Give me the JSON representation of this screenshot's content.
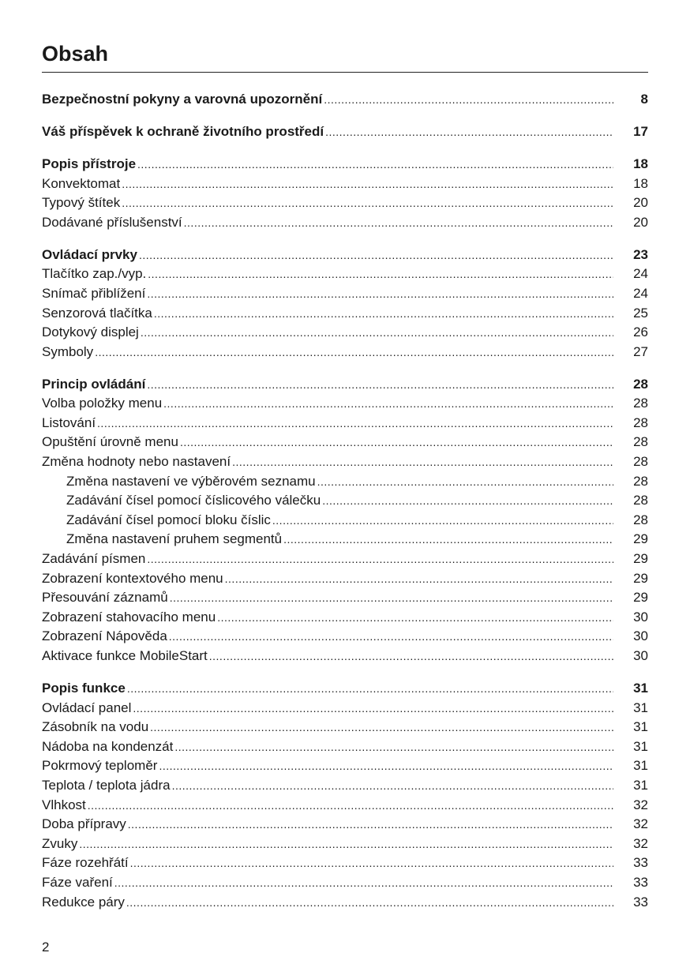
{
  "title": "Obsah",
  "page_number": "2",
  "groups": [
    {
      "entries": [
        {
          "title": "Bezpečnostní pokyny a varovná upozornění",
          "page": "8",
          "bold": true
        }
      ]
    },
    {
      "entries": [
        {
          "title": "Váš příspěvek k ochraně životního prostředí",
          "page": "17",
          "bold": true
        }
      ]
    },
    {
      "entries": [
        {
          "title": "Popis přístroje",
          "page": "18",
          "bold": true
        },
        {
          "title": "Konvektomat",
          "page": "18"
        },
        {
          "title": "Typový štítek",
          "page": "20"
        },
        {
          "title": "Dodávané příslušenství",
          "page": "20"
        }
      ]
    },
    {
      "entries": [
        {
          "title": "Ovládací prvky",
          "page": "23",
          "bold": true
        },
        {
          "title": "Tlačítko zap./vyp.",
          "page": "24"
        },
        {
          "title": "Snímač přiblížení",
          "page": "24"
        },
        {
          "title": "Senzorová tlačítka",
          "page": "25"
        },
        {
          "title": "Dotykový displej",
          "page": "26"
        },
        {
          "title": "Symboly",
          "page": "27"
        }
      ]
    },
    {
      "entries": [
        {
          "title": "Princip ovládání",
          "page": "28",
          "bold": true
        },
        {
          "title": "Volba položky menu",
          "page": "28"
        },
        {
          "title": "Listování",
          "page": "28"
        },
        {
          "title": "Opuštění úrovně menu",
          "page": "28"
        },
        {
          "title": "Změna hodnoty nebo nastavení",
          "page": "28"
        },
        {
          "title": "Změna nastavení ve výběrovém seznamu",
          "page": "28",
          "indent": true
        },
        {
          "title": "Zadávání čísel pomocí číslicového válečku",
          "page": "28",
          "indent": true
        },
        {
          "title": "Zadávání čísel pomocí bloku číslic",
          "page": "28",
          "indent": true
        },
        {
          "title": "Změna nastavení pruhem segmentů",
          "page": "29",
          "indent": true
        },
        {
          "title": "Zadávání písmen",
          "page": "29"
        },
        {
          "title": "Zobrazení kontextového menu",
          "page": "29"
        },
        {
          "title": "Přesouvání záznamů",
          "page": "29"
        },
        {
          "title": "Zobrazení stahovacího menu",
          "page": "30"
        },
        {
          "title": "Zobrazení Nápověda",
          "page": "30"
        },
        {
          "title": "Aktivace funkce MobileStart",
          "page": "30"
        }
      ]
    },
    {
      "entries": [
        {
          "title": "Popis funkce",
          "page": "31",
          "bold": true
        },
        {
          "title": "Ovládací panel",
          "page": "31"
        },
        {
          "title": "Zásobník na vodu",
          "page": "31"
        },
        {
          "title": "Nádoba na kondenzát",
          "page": "31"
        },
        {
          "title": "Pokrmový teploměr",
          "page": "31"
        },
        {
          "title": "Teplota / teplota jádra",
          "page": "31"
        },
        {
          "title": "Vlhkost",
          "page": "32"
        },
        {
          "title": "Doba přípravy",
          "page": "32"
        },
        {
          "title": "Zvuky",
          "page": "32"
        },
        {
          "title": "Fáze rozehřátí",
          "page": "33"
        },
        {
          "title": "Fáze vaření",
          "page": "33"
        },
        {
          "title": "Redukce páry",
          "page": "33"
        }
      ]
    }
  ]
}
